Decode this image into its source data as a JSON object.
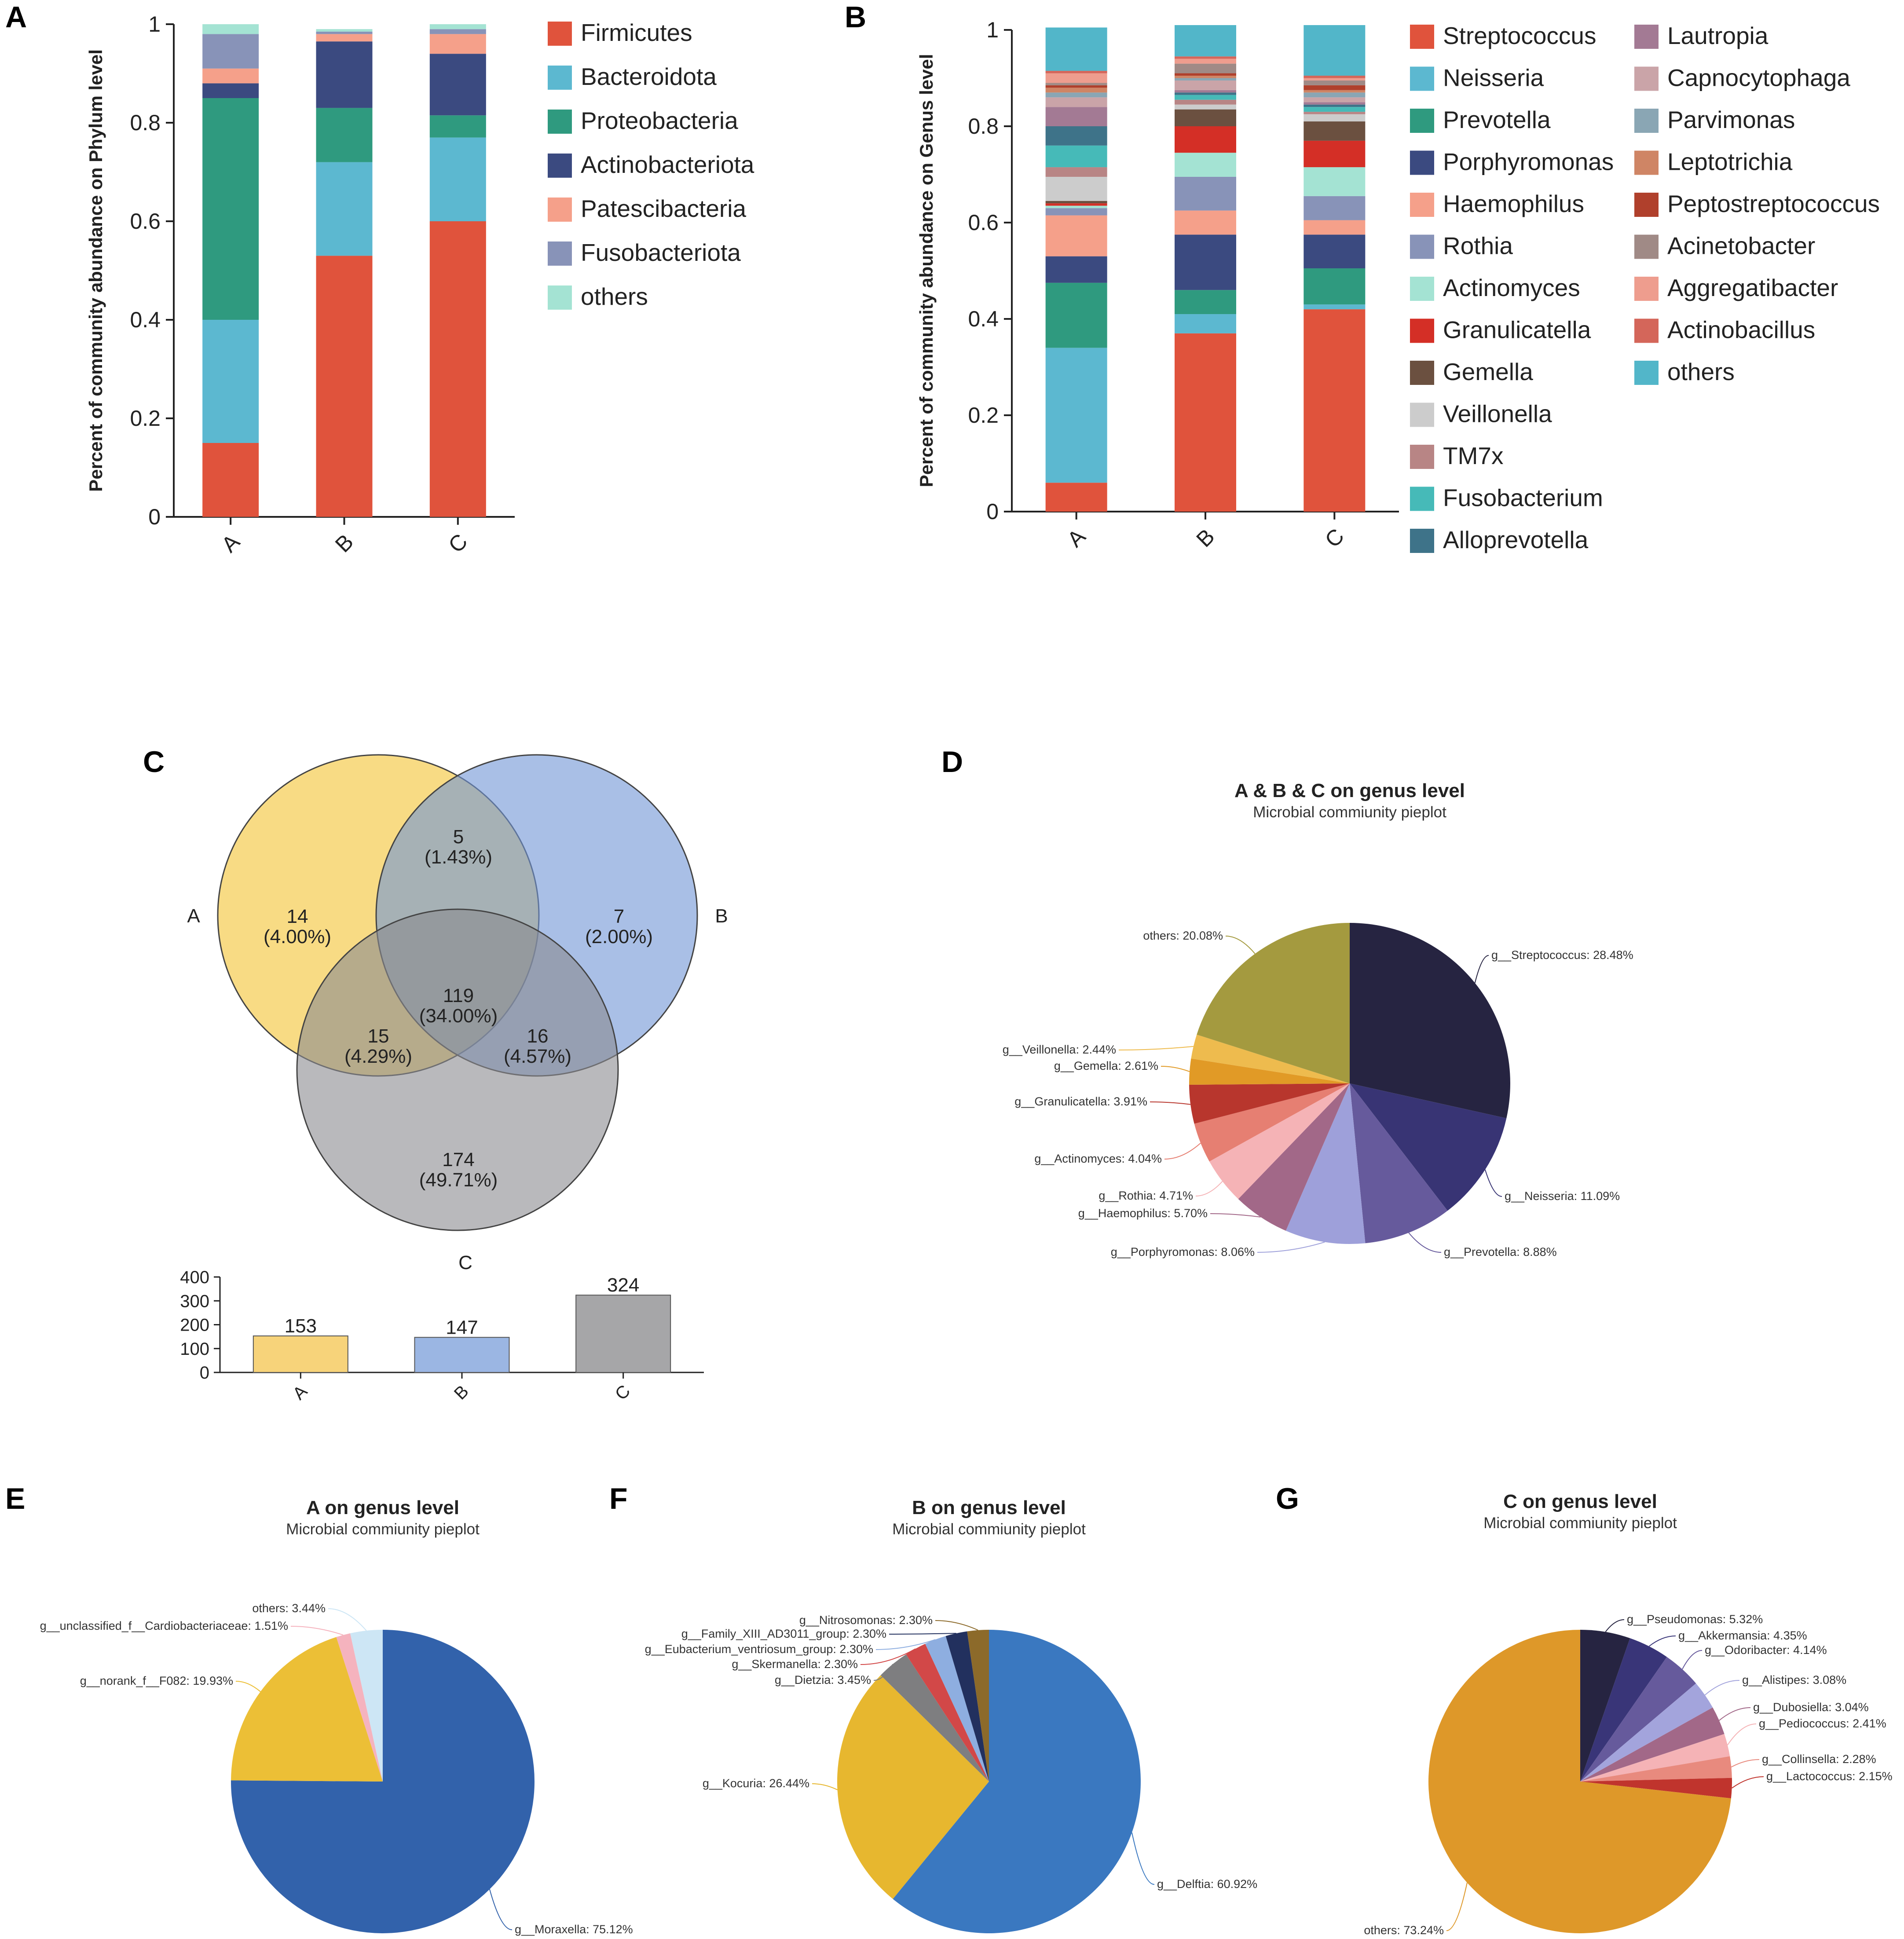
{
  "panels": {
    "A": "A",
    "B": "B",
    "C": "C",
    "D": "D",
    "E": "E",
    "F": "F",
    "G": "G"
  },
  "chart_data": [
    {
      "id": "A",
      "type": "bar",
      "stacked": true,
      "ylabel": "Percent of community abundance on Phylum level",
      "ylim": [
        0,
        1
      ],
      "yticks": [
        "0",
        "0.2",
        "0.4",
        "0.6",
        "0.8",
        "1"
      ],
      "categories": [
        "A",
        "B",
        "C"
      ],
      "series": [
        {
          "name": "Firmicutes",
          "color": "#e0533c",
          "values": [
            0.15,
            0.53,
            0.6
          ]
        },
        {
          "name": "Bacteroidota",
          "color": "#5cb8d0",
          "values": [
            0.25,
            0.19,
            0.17
          ]
        },
        {
          "name": "Proteobacteria",
          "color": "#2f9a7f",
          "values": [
            0.45,
            0.11,
            0.045
          ]
        },
        {
          "name": "Actinobacteriota",
          "color": "#3b4a80",
          "values": [
            0.03,
            0.135,
            0.125
          ]
        },
        {
          "name": "Patescibacteria",
          "color": "#f5a08a",
          "values": [
            0.03,
            0.015,
            0.04
          ]
        },
        {
          "name": "Fusobacteriota",
          "color": "#8893b8",
          "values": [
            0.07,
            0.005,
            0.01
          ]
        },
        {
          "name": "others",
          "color": "#a4e3d3",
          "values": [
            0.02,
            0.005,
            0.01
          ]
        }
      ]
    },
    {
      "id": "B",
      "type": "bar",
      "stacked": true,
      "ylabel": "Percent of community abundance on Genus level",
      "ylim": [
        0,
        1
      ],
      "yticks": [
        "0",
        "0.2",
        "0.4",
        "0.6",
        "0.8",
        "1"
      ],
      "categories": [
        "A",
        "B",
        "C"
      ],
      "series": [
        {
          "name": "Streptococcus",
          "color": "#e0533c",
          "values": [
            0.06,
            0.37,
            0.42
          ]
        },
        {
          "name": "Neisseria",
          "color": "#5cb8d0",
          "values": [
            0.28,
            0.04,
            0.01
          ]
        },
        {
          "name": "Prevotella",
          "color": "#2f9a7f",
          "values": [
            0.135,
            0.05,
            0.075
          ]
        },
        {
          "name": "Porphyromonas",
          "color": "#3b4a80",
          "values": [
            0.055,
            0.115,
            0.07
          ]
        },
        {
          "name": "Haemophilus",
          "color": "#f5a08a",
          "values": [
            0.085,
            0.05,
            0.03
          ]
        },
        {
          "name": "Rothia",
          "color": "#8893b8",
          "values": [
            0.015,
            0.07,
            0.05
          ]
        },
        {
          "name": "Actinomyces",
          "color": "#a4e3d3",
          "values": [
            0.005,
            0.05,
            0.06
          ]
        },
        {
          "name": "Granulicatella",
          "color": "#d42f26",
          "values": [
            0.005,
            0.055,
            0.055
          ]
        },
        {
          "name": "Gemella",
          "color": "#6b5040",
          "values": [
            0.005,
            0.035,
            0.04
          ]
        },
        {
          "name": "Veillonella",
          "color": "#cccccc",
          "values": [
            0.05,
            0.01,
            0.015
          ]
        },
        {
          "name": "TM7x",
          "color": "#b88585",
          "values": [
            0.02,
            0.01,
            0.005
          ]
        },
        {
          "name": "Fusobacterium",
          "color": "#46bab8",
          "values": [
            0.045,
            0.01,
            0.01
          ]
        },
        {
          "name": "Alloprevotella",
          "color": "#3e7389",
          "values": [
            0.04,
            0.005,
            0.005
          ]
        },
        {
          "name": "Lautropia",
          "color": "#a37a94",
          "values": [
            0.04,
            0.005,
            0.005
          ]
        },
        {
          "name": "Capnocytophaga",
          "color": "#caa4a8",
          "values": [
            0.02,
            0.02,
            0.01
          ]
        },
        {
          "name": "Parvimonas",
          "color": "#8aa6b4",
          "values": [
            0.01,
            0.005,
            0.01
          ]
        },
        {
          "name": "Leptotrichia",
          "color": "#cf8565",
          "values": [
            0.01,
            0.005,
            0.005
          ]
        },
        {
          "name": "Peptostreptococcus",
          "color": "#b0402c",
          "values": [
            0.005,
            0.005,
            0.01
          ]
        },
        {
          "name": "Acinetobacter",
          "color": "#a08a86",
          "values": [
            0.005,
            0.02,
            0.01
          ]
        },
        {
          "name": "Aggregatibacter",
          "color": "#ee9d8e",
          "values": [
            0.02,
            0.01,
            0.005
          ]
        },
        {
          "name": "Actinobacillus",
          "color": "#d4665a",
          "values": [
            0.005,
            0.005,
            0.005
          ]
        },
        {
          "name": "others",
          "color": "#52b6c9",
          "values": [
            0.09,
            0.065,
            0.105
          ]
        }
      ]
    },
    {
      "id": "C",
      "type": "venn",
      "sets": [
        "A",
        "B",
        "C"
      ],
      "regions": [
        {
          "key": "A_only",
          "count": "14",
          "pct": "(4.00%)"
        },
        {
          "key": "B_only",
          "count": "7",
          "pct": "(2.00%)"
        },
        {
          "key": "C_only",
          "count": "174",
          "pct": "(49.71%)"
        },
        {
          "key": "AB",
          "count": "5",
          "pct": "(1.43%)"
        },
        {
          "key": "AC",
          "count": "15",
          "pct": "(4.29%)"
        },
        {
          "key": "BC",
          "count": "16",
          "pct": "(4.57%)"
        },
        {
          "key": "ABC",
          "count": "119",
          "pct": "(34.00%)"
        }
      ],
      "set_colors": [
        "#f5c842",
        "#6f94d6",
        "#8a8a8f"
      ],
      "totals": {
        "type": "bar",
        "categories": [
          "A",
          "B",
          "C"
        ],
        "values": [
          153,
          147,
          324
        ],
        "value_labels": [
          "153",
          "147",
          "324"
        ],
        "colors": [
          "#f7d37a",
          "#9bb6e3",
          "#a6a6a8"
        ],
        "ylim": [
          0,
          400
        ],
        "yticks": [
          "0",
          "100",
          "200",
          "300",
          "400"
        ]
      }
    },
    {
      "id": "D",
      "type": "pie",
      "title": "A & B & C on genus level",
      "subtitle": "Microbial commiunity pieplot",
      "slices": [
        {
          "label": "g__Streptococcus: 28.48%",
          "value": 28.48,
          "color": "#262441"
        },
        {
          "label": "g__Neisseria: 11.09%",
          "value": 11.09,
          "color": "#383474"
        },
        {
          "label": "g__Prevotella: 8.88%",
          "value": 8.88,
          "color": "#665a9c"
        },
        {
          "label": "g__Porphyromonas: 8.06%",
          "value": 8.06,
          "color": "#9ea0da"
        },
        {
          "label": "g__Haemophilus: 5.70%",
          "value": 5.7,
          "color": "#a26888"
        },
        {
          "label": "g__Rothia: 4.71%",
          "value": 4.71,
          "color": "#f5b3b6"
        },
        {
          "label": "g__Actinomyces: 4.04%",
          "value": 4.04,
          "color": "#e67f72"
        },
        {
          "label": "g__Granulicatella: 3.91%",
          "value": 3.91,
          "color": "#b8362d"
        },
        {
          "label": "g__Gemella: 2.61%",
          "value": 2.61,
          "color": "#e19a26"
        },
        {
          "label": "g__Veillonella: 2.44%",
          "value": 2.44,
          "color": "#eebb4e"
        },
        {
          "label": "others: 20.08%",
          "value": 20.08,
          "color": "#a49a3f"
        }
      ]
    },
    {
      "id": "E",
      "type": "pie",
      "title": "A on genus level",
      "subtitle": "Microbial commiunity pieplot",
      "slices": [
        {
          "label": "g__Moraxella: 75.12%",
          "value": 75.12,
          "color": "#3262ab"
        },
        {
          "label": "g__norank_f__F082: 19.93%",
          "value": 19.93,
          "color": "#ecbf36"
        },
        {
          "label": "g__unclassified_f__Cardiobacteriaceae: 1.51%",
          "value": 1.51,
          "color": "#f5b3be"
        },
        {
          "label": "others: 3.44%",
          "value": 3.44,
          "color": "#cde6f5"
        }
      ]
    },
    {
      "id": "F",
      "type": "pie",
      "title": "B on genus level",
      "subtitle": "Microbial commiunity pieplot",
      "slices": [
        {
          "label": "g__Delftia: 60.92%",
          "value": 60.92,
          "color": "#3a78c0"
        },
        {
          "label": "g__Kocuria: 26.44%",
          "value": 26.44,
          "color": "#e7b72f"
        },
        {
          "label": "g__Dietzia: 3.45%",
          "value": 3.45,
          "color": "#7e7e80"
        },
        {
          "label": "g__Skermanella: 2.30%",
          "value": 2.3,
          "color": "#d24848"
        },
        {
          "label": "g__Eubacterium_ventriosum_group: 2.30%",
          "value": 2.3,
          "color": "#8eaee0"
        },
        {
          "label": "g__Family_XIII_AD3011_group: 2.30%",
          "value": 2.3,
          "color": "#22305e"
        },
        {
          "label": "g__Nitrosomonas: 2.30%",
          "value": 2.3,
          "color": "#8c6a2a"
        }
      ]
    },
    {
      "id": "G",
      "type": "pie",
      "title": "C on genus level",
      "subtitle": "Microbial commiunity pieplot",
      "slices": [
        {
          "label": "g__Pseudomonas: 5.32%",
          "value": 5.32,
          "color": "#262441"
        },
        {
          "label": "g__Akkermansia: 4.35%",
          "value": 4.35,
          "color": "#393578"
        },
        {
          "label": "g__Odoribacter: 4.14%",
          "value": 4.14,
          "color": "#665a9c"
        },
        {
          "label": "g__Alistipes: 3.08%",
          "value": 3.08,
          "color": "#a3a4dc"
        },
        {
          "label": "g__Dubosiella: 3.04%",
          "value": 3.04,
          "color": "#a26888"
        },
        {
          "label": "g__Pediococcus: 2.41%",
          "value": 2.41,
          "color": "#f5b3b6"
        },
        {
          "label": "g__Collinsella: 2.28%",
          "value": 2.28,
          "color": "#e88a7e"
        },
        {
          "label": "g__Lactococcus: 2.15%",
          "value": 2.15,
          "color": "#c0342d"
        },
        {
          "label": "others: 73.24%",
          "value": 73.24,
          "color": "#de9829"
        }
      ]
    }
  ]
}
